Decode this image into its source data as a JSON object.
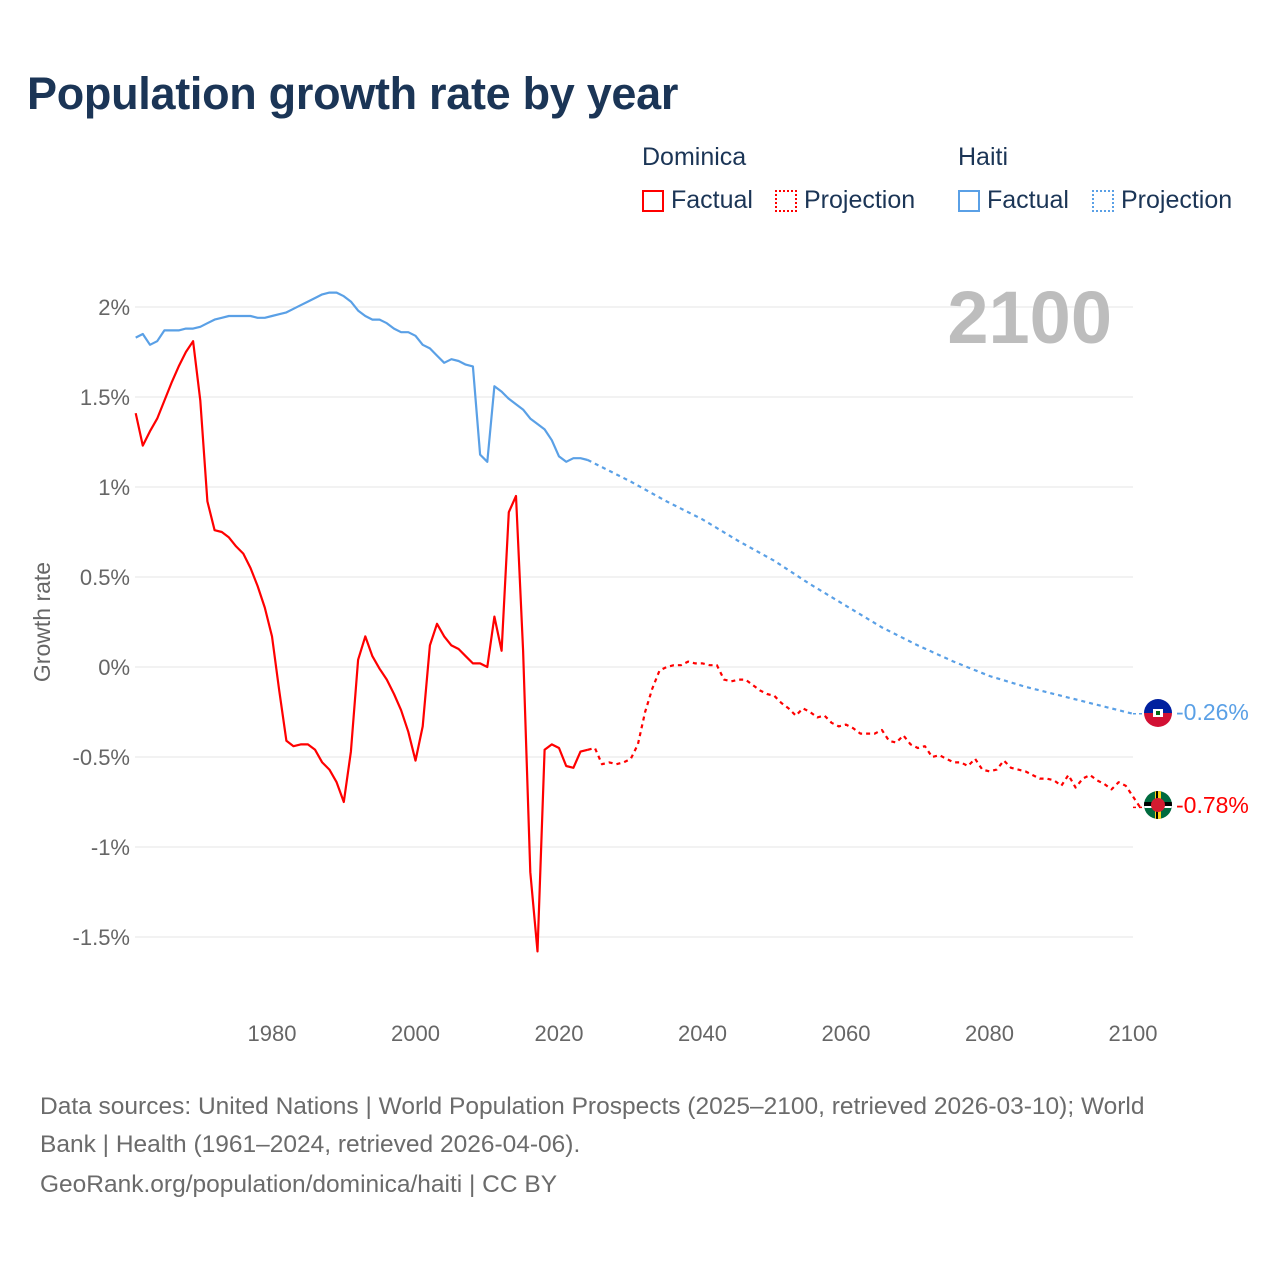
{
  "title": "Population growth rate by year",
  "legend": {
    "groups": [
      {
        "name": "Dominica",
        "color": "#ff0000",
        "factual": "Factual",
        "projection": "Projection"
      },
      {
        "name": "Haiti",
        "color": "#5aa0e6",
        "factual": "Factual",
        "projection": "Projection"
      }
    ]
  },
  "year_display": "2100",
  "end_labels": {
    "haiti": "-0.26%",
    "dominica": "-0.78%"
  },
  "footer": {
    "line1": "Data sources: United Nations | World Population Prospects (2025–2100, retrieved 2026-03-10); World",
    "line2": "Bank | Health (1961–2024, retrieved 2026-04-06).",
    "line3": "GeoRank.org/population/dominica/haiti | CC BY"
  },
  "chart_data": {
    "type": "line",
    "title": "Population growth rate by year",
    "xlabel": "",
    "ylabel": "Growth rate",
    "xlim": [
      1961,
      2100
    ],
    "ylim": [
      -2,
      2.3
    ],
    "x_ticks": [
      1980,
      2000,
      2020,
      2040,
      2060,
      2080,
      2100
    ],
    "y_ticks": [
      {
        "v": 2,
        "label": "2%"
      },
      {
        "v": 1.5,
        "label": "1.5%"
      },
      {
        "v": 1,
        "label": "1%"
      },
      {
        "v": 0.5,
        "label": "0.5%"
      },
      {
        "v": 0,
        "label": "0%"
      },
      {
        "v": -0.5,
        "label": "-0.5%"
      },
      {
        "v": -1,
        "label": "-1%"
      },
      {
        "v": -1.5,
        "label": "-1.5%"
      }
    ],
    "grid": true,
    "legend_position": "top-right",
    "series": [
      {
        "name": "Dominica",
        "kind": "Factual",
        "color": "#ff0000",
        "start": 1961,
        "values": [
          1.41,
          1.23,
          1.31,
          1.38,
          1.48,
          1.58,
          1.67,
          1.75,
          1.81,
          1.48,
          0.92,
          0.76,
          0.75,
          0.72,
          0.67,
          0.63,
          0.55,
          0.45,
          0.33,
          0.17,
          -0.13,
          -0.41,
          -0.44,
          -0.43,
          -0.43,
          -0.46,
          -0.53,
          -0.57,
          -0.64,
          -0.75,
          -0.47,
          0.04,
          0.17,
          0.06,
          -0.01,
          -0.07,
          -0.15,
          -0.24,
          -0.36,
          -0.52,
          -0.33,
          0.12,
          0.24,
          0.17,
          0.12,
          0.1,
          0.06,
          0.02,
          0.02,
          0.0,
          0.28,
          0.09,
          0.86,
          0.95,
          0.09,
          -1.14,
          -1.58,
          -0.46,
          -0.43,
          -0.45,
          -0.55,
          -0.56,
          -0.47,
          -0.46
        ]
      },
      {
        "name": "Dominica",
        "kind": "Projection",
        "color": "#ff0000",
        "start": 2024,
        "values": [
          -0.46,
          -0.45,
          -0.54,
          -0.53,
          -0.54,
          -0.53,
          -0.51,
          -0.43,
          -0.25,
          -0.12,
          -0.02,
          0.0,
          0.01,
          0.01,
          0.03,
          0.02,
          0.02,
          0.01,
          0.01,
          -0.07,
          -0.08,
          -0.07,
          -0.07,
          -0.1,
          -0.13,
          -0.15,
          -0.16,
          -0.2,
          -0.23,
          -0.27,
          -0.23,
          -0.25,
          -0.28,
          -0.27,
          -0.31,
          -0.33,
          -0.32,
          -0.34,
          -0.37,
          -0.37,
          -0.37,
          -0.35,
          -0.41,
          -0.42,
          -0.38,
          -0.43,
          -0.45,
          -0.44,
          -0.5,
          -0.49,
          -0.51,
          -0.53,
          -0.53,
          -0.55,
          -0.51,
          -0.57,
          -0.58,
          -0.57,
          -0.52,
          -0.56,
          -0.57,
          -0.58,
          -0.6,
          -0.62,
          -0.62,
          -0.63,
          -0.66,
          -0.6,
          -0.67,
          -0.62,
          -0.6,
          -0.63,
          -0.65,
          -0.68,
          -0.64,
          -0.66,
          -0.72,
          -0.78
        ]
      },
      {
        "name": "Haiti",
        "kind": "Factual",
        "color": "#5aa0e6",
        "start": 1961,
        "values": [
          1.83,
          1.85,
          1.79,
          1.81,
          1.87,
          1.87,
          1.87,
          1.88,
          1.88,
          1.89,
          1.91,
          1.93,
          1.94,
          1.95,
          1.95,
          1.95,
          1.95,
          1.94,
          1.94,
          1.95,
          1.96,
          1.97,
          1.99,
          2.01,
          2.03,
          2.05,
          2.07,
          2.08,
          2.08,
          2.06,
          2.03,
          1.98,
          1.95,
          1.93,
          1.93,
          1.91,
          1.88,
          1.86,
          1.86,
          1.84,
          1.79,
          1.77,
          1.73,
          1.69,
          1.71,
          1.7,
          1.68,
          1.67,
          1.18,
          1.14,
          1.56,
          1.53,
          1.49,
          1.46,
          1.43,
          1.38,
          1.35,
          1.32,
          1.26,
          1.17,
          1.14,
          1.16,
          1.16,
          1.15
        ]
      },
      {
        "name": "Haiti",
        "kind": "Projection",
        "color": "#5aa0e6",
        "x": [
          2024,
          2030,
          2035,
          2040,
          2045,
          2050,
          2055,
          2060,
          2065,
          2070,
          2075,
          2080,
          2085,
          2090,
          2095,
          2100
        ],
        "values": [
          1.15,
          1.03,
          0.92,
          0.82,
          0.7,
          0.59,
          0.46,
          0.34,
          0.22,
          0.12,
          0.03,
          -0.05,
          -0.11,
          -0.16,
          -0.21,
          -0.26
        ]
      }
    ]
  }
}
